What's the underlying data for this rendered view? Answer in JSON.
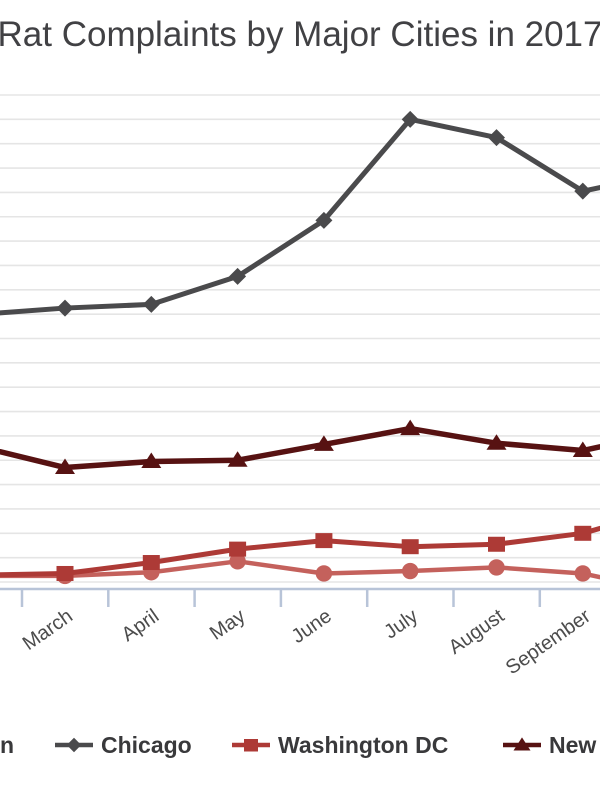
{
  "title": "Rat Complaints by Major Cities in 2017",
  "chart_data": {
    "type": "line",
    "title": "Rat Complaints by Major Cities in 2017",
    "categories": [
      "March",
      "April",
      "May",
      "June",
      "July",
      "August",
      "September"
    ],
    "series": [
      {
        "id": "boston",
        "legend_label": "n",
        "legend_label_cropped": true,
        "marker": "circle",
        "color": "#c4615c",
        "line_width": 4.5,
        "values": [
          25,
          40,
          85,
          35,
          45,
          60,
          35
        ],
        "left_edge_value": 25,
        "right_edge_value": 20
      },
      {
        "id": "washington-dc",
        "legend_label": "Washington DC",
        "legend_label_cropped": false,
        "marker": "square",
        "color": "#ad3a36",
        "line_width": 5,
        "values": [
          35,
          80,
          135,
          170,
          145,
          155,
          200
        ],
        "left_edge_value": 30,
        "right_edge_value": 220
      },
      {
        "id": "new-york",
        "legend_label": "New",
        "legend_label_cropped": true,
        "marker": "triangle",
        "color": "#571212",
        "line_width": 5.5,
        "values": [
          470,
          495,
          500,
          565,
          630,
          570,
          540
        ],
        "left_edge_value": 535,
        "right_edge_value": 555
      },
      {
        "id": "chicago",
        "legend_label": "Chicago",
        "legend_label_cropped": false,
        "marker": "diamond",
        "color": "#4a4a4c",
        "line_width": 5,
        "values": [
          1125,
          1140,
          1255,
          1485,
          1900,
          1825,
          1605
        ],
        "left_edge_value": 1105,
        "right_edge_value": 1620
      }
    ],
    "y_axis_labels_visible": false,
    "values_estimated_from_gridlines": true,
    "gridline_unit_assumed": 100,
    "ylim": [
      0,
      2000
    ],
    "grid": "horizontal",
    "legend_position": "bottom",
    "xlabel": "",
    "ylabel": ""
  },
  "legend": {
    "items": [
      {
        "label": "n",
        "series": "boston",
        "marker_visible": false
      },
      {
        "label": "Chicago",
        "series": "chicago",
        "marker_visible": true
      },
      {
        "label": "Washington DC",
        "series": "washington-dc",
        "marker_visible": true
      },
      {
        "label": "New",
        "series": "new-york",
        "marker_visible": true
      }
    ]
  },
  "colors": {
    "axis": "#b8c4d8",
    "gridline": "#e5e5e5",
    "title_text": "#414144",
    "axis_label_text": "#4c4c4c",
    "legend_text": "#39393b",
    "background": "#ffffff"
  }
}
